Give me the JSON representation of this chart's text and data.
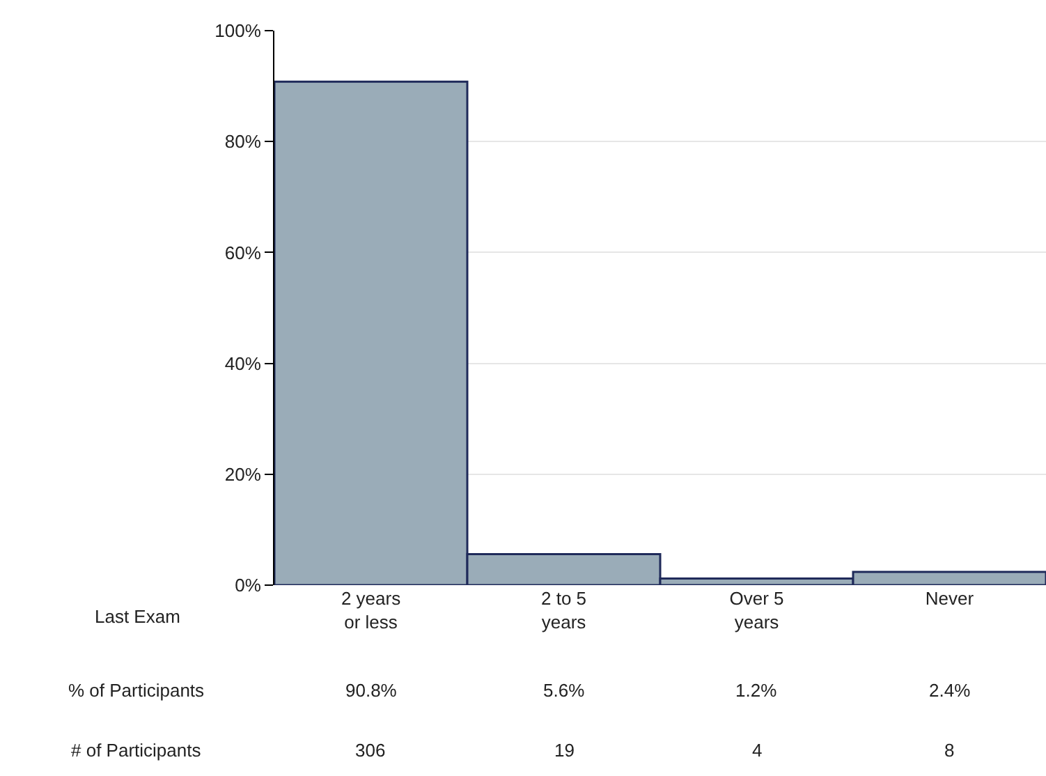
{
  "chart_data": {
    "type": "bar",
    "categories": [
      "2 years or less",
      "2 to 5 years",
      "Over 5 years",
      "Never"
    ],
    "values": [
      90.8,
      5.6,
      1.2,
      2.4
    ],
    "value_labels": [
      "90.8%",
      "5.6%",
      "1.2%",
      "2.4%"
    ],
    "color": "#9aacb8",
    "xlabel": "Last Exam",
    "annotations": [
      "% of Participants",
      "# of Participants",
      "306",
      "19",
      "4",
      "8"
    ],
    "ylim": [
      0,
      100
    ],
    "yticks": [
      {
        "value": 0,
        "label": "0%"
      },
      {
        "value": 20,
        "label": "20%"
      },
      {
        "value": 40,
        "label": "40%"
      },
      {
        "value": 60,
        "label": "60%"
      },
      {
        "value": 80,
        "label": "80%"
      },
      {
        "value": 100,
        "label": "100%"
      }
    ],
    "grid": "y"
  }
}
